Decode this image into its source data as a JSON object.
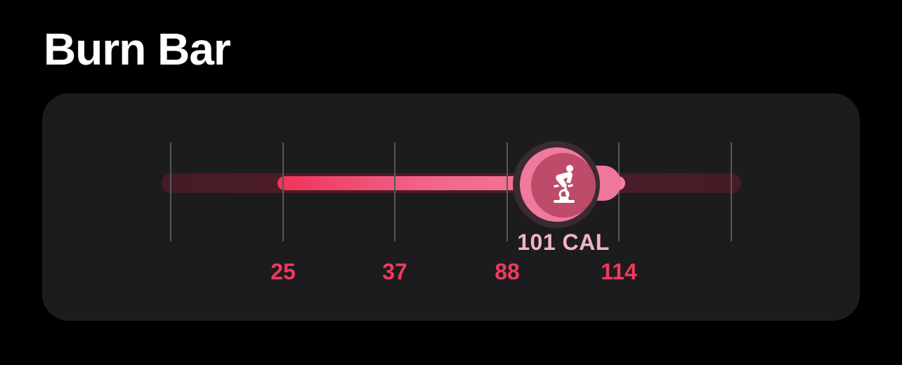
{
  "title": "Burn Bar",
  "burn_bar": {
    "current_calories_label": "101 CAL",
    "current_calories": 101,
    "activity_icon": "stationary-bike-icon",
    "tick_labels": [
      "25",
      "37",
      "88",
      "114"
    ],
    "colors": {
      "accent": "#ee3a5e",
      "fill": "#f2668b",
      "track": "#4a1d29",
      "knob": "#f07a9c",
      "knob_inner": "#bd4b69",
      "label": "#f2b3c6",
      "card_background": "#1c1c1e",
      "background": "#000000"
    }
  }
}
